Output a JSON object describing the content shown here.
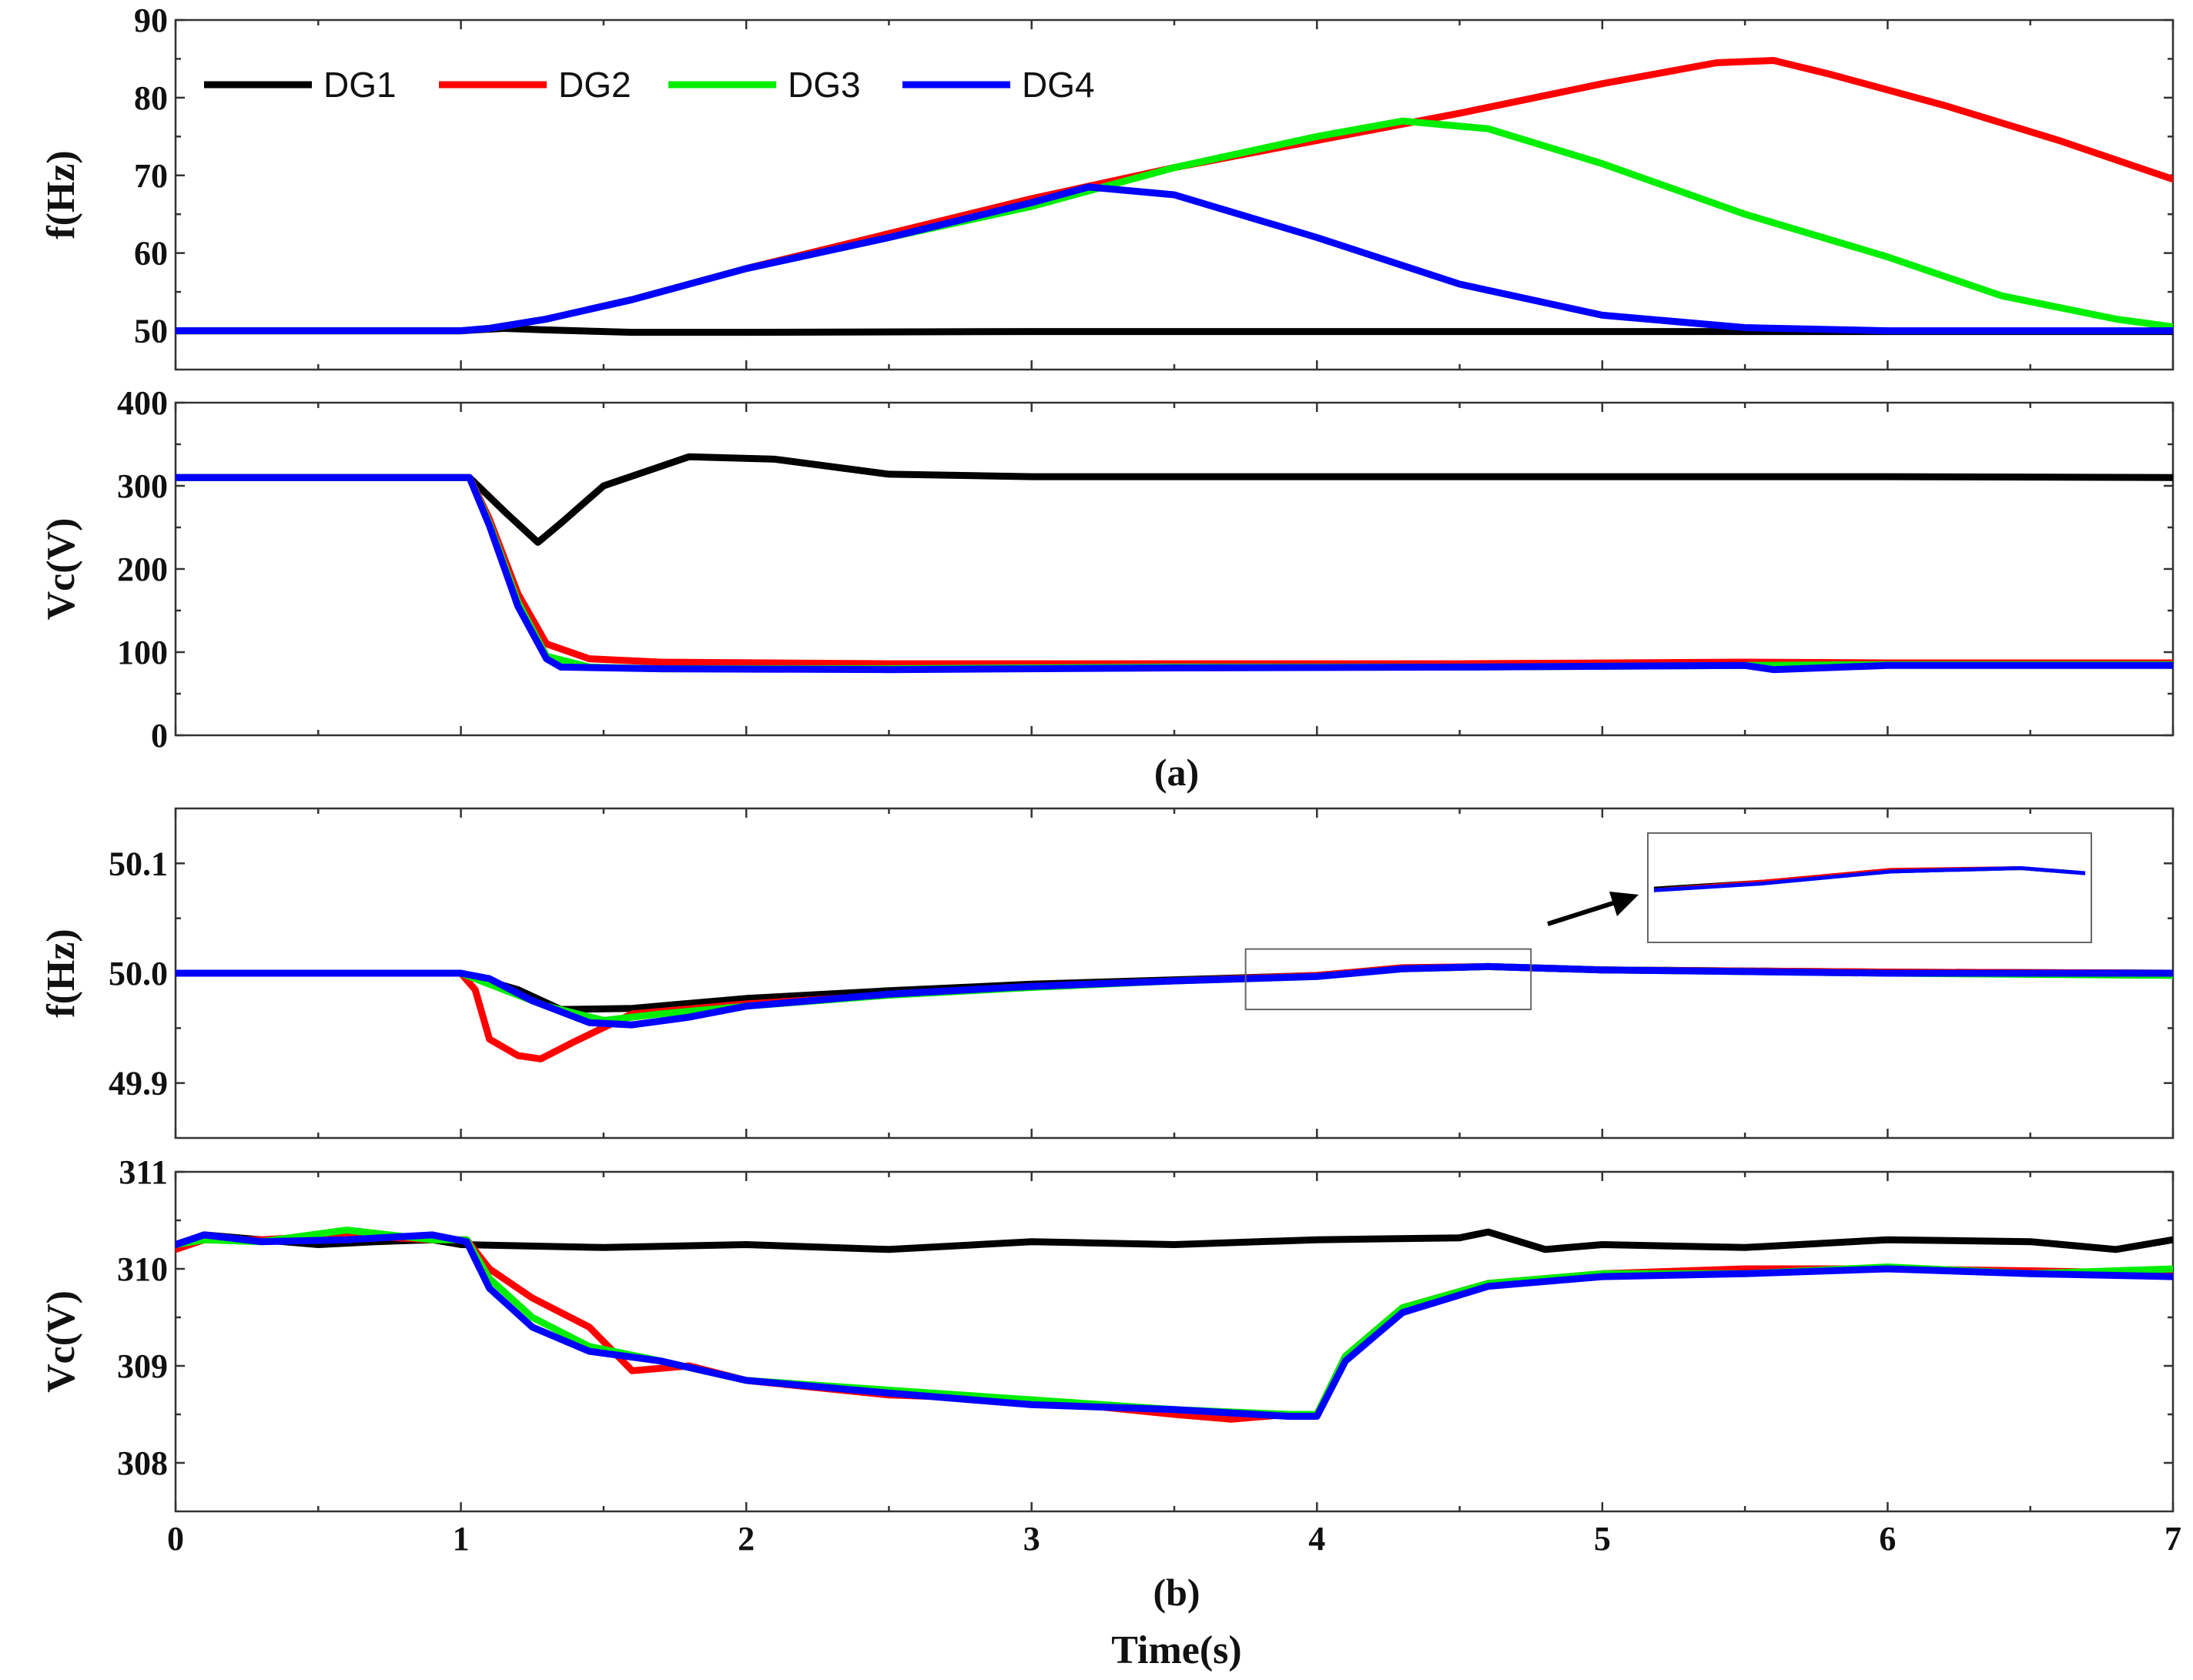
{
  "chart_data": [
    {
      "id": "a-f",
      "type": "line",
      "xlabel": "",
      "ylabel": "f(Hz)",
      "xlim": [
        0,
        7
      ],
      "ylim": [
        45,
        90
      ],
      "yticks": [
        "50",
        "60",
        "70",
        "80",
        "90"
      ],
      "ytick_values": [
        50,
        60,
        70,
        80,
        90
      ],
      "legend": {
        "position": "top-left",
        "entries": [
          "DG1",
          "DG2",
          "DG3",
          "DG4"
        ]
      },
      "series": [
        {
          "name": "DG1",
          "color": "#000000",
          "x": [
            0,
            1,
            1.15,
            1.3,
            1.6,
            2,
            3,
            4,
            5,
            6,
            7
          ],
          "y": [
            50,
            50,
            50.3,
            50.1,
            49.8,
            49.8,
            49.9,
            49.9,
            49.9,
            49.9,
            49.9
          ]
        },
        {
          "name": "DG2",
          "color": "#ff0000",
          "x": [
            0,
            1,
            1.1,
            1.3,
            1.6,
            2,
            2.5,
            3,
            3.5,
            4,
            4.5,
            5,
            5.4,
            5.6,
            5.8,
            6.2,
            6.6,
            7
          ],
          "y": [
            50,
            50,
            50.3,
            51.5,
            54,
            58,
            62.5,
            67,
            71,
            74.5,
            78,
            81.8,
            84.5,
            84.8,
            83,
            79,
            74.5,
            69.5
          ]
        },
        {
          "name": "DG3",
          "color": "#00ee00",
          "x": [
            0,
            1,
            1.1,
            1.3,
            1.6,
            2,
            2.5,
            3,
            3.5,
            4,
            4.3,
            4.6,
            5,
            5.5,
            6,
            6.4,
            6.8,
            7
          ],
          "y": [
            50,
            50,
            50.3,
            51.5,
            54,
            58,
            62,
            66,
            71,
            75,
            77,
            76,
            71.5,
            65,
            59.5,
            54.5,
            51.5,
            50.5
          ]
        },
        {
          "name": "DG4",
          "color": "#0000ff",
          "x": [
            0,
            1,
            1.1,
            1.3,
            1.6,
            2,
            2.5,
            3,
            3.2,
            3.5,
            4,
            4.5,
            5,
            5.5,
            6,
            7
          ],
          "y": [
            50,
            50,
            50.3,
            51.5,
            54,
            58,
            62,
            66.5,
            68.5,
            67.5,
            62,
            56,
            52,
            50.4,
            50,
            50
          ]
        }
      ]
    },
    {
      "id": "a-vc",
      "type": "line",
      "xlabel": "",
      "ylabel": "Vc(V)",
      "xlim": [
        0,
        7
      ],
      "ylim": [
        0,
        400
      ],
      "yticks": [
        "0",
        "100",
        "200",
        "300",
        "400"
      ],
      "ytick_values": [
        0,
        100,
        200,
        300,
        400
      ],
      "series": [
        {
          "name": "DG1",
          "color": "#000000",
          "x": [
            0,
            1.03,
            1.15,
            1.27,
            1.35,
            1.5,
            1.8,
            2.1,
            2.5,
            3,
            4,
            5,
            6,
            7
          ],
          "y": [
            310,
            310,
            270,
            232,
            255,
            300,
            335,
            332,
            314,
            311,
            311,
            311,
            311,
            310
          ]
        },
        {
          "name": "DG2",
          "color": "#ff0000",
          "x": [
            0,
            1.03,
            1.1,
            1.2,
            1.3,
            1.45,
            1.7,
            2.5,
            3.5,
            4.5,
            5.5,
            6,
            7
          ],
          "y": [
            310,
            310,
            260,
            170,
            110,
            92,
            88,
            86,
            86,
            86,
            88,
            87,
            87
          ]
        },
        {
          "name": "DG3",
          "color": "#00ee00",
          "x": [
            0,
            1.03,
            1.1,
            1.2,
            1.3,
            1.45,
            1.7,
            2.5,
            3.5,
            4.5,
            5.5,
            6,
            7
          ],
          "y": [
            310,
            310,
            255,
            160,
            95,
            82,
            80,
            80,
            82,
            82,
            84,
            85,
            85
          ]
        },
        {
          "name": "DG4",
          "color": "#0000ff",
          "x": [
            0,
            1.03,
            1.1,
            1.2,
            1.3,
            1.35,
            1.7,
            2.5,
            3.5,
            4.5,
            5.5,
            5.6,
            6,
            7
          ],
          "y": [
            310,
            310,
            252,
            155,
            92,
            82,
            80,
            79,
            81,
            82,
            84,
            79,
            84,
            84
          ]
        }
      ]
    },
    {
      "id": "b-f",
      "type": "line",
      "xlabel": "",
      "ylabel": "f(Hz)",
      "xlim": [
        0,
        7
      ],
      "ylim": [
        49.85,
        50.15
      ],
      "yticks": [
        "49.9",
        "50.0",
        "50.1"
      ],
      "ytick_values": [
        49.9,
        50.0,
        50.1
      ],
      "series": [
        {
          "name": "DG1",
          "color": "#000000",
          "x": [
            0,
            1,
            1.2,
            1.35,
            1.6,
            2,
            2.5,
            3,
            3.5,
            4,
            4.3,
            4.6,
            5,
            6,
            7
          ],
          "y": [
            50,
            50,
            49.985,
            49.967,
            49.968,
            49.977,
            49.984,
            49.99,
            49.994,
            49.998,
            50.004,
            50.006,
            50.003,
            50.001,
            50
          ]
        },
        {
          "name": "DG2",
          "color": "#ff0000",
          "x": [
            0,
            1,
            1.05,
            1.1,
            1.2,
            1.28,
            1.4,
            1.6,
            2,
            2.5,
            3,
            3.5,
            4,
            4.3,
            4.6,
            5,
            6,
            7
          ],
          "y": [
            50,
            50,
            49.985,
            49.94,
            49.925,
            49.922,
            49.938,
            49.963,
            49.972,
            49.98,
            49.988,
            49.993,
            49.998,
            50.005,
            50.006,
            50.003,
            50.001,
            50
          ]
        },
        {
          "name": "DG3",
          "color": "#00ee00",
          "x": [
            0,
            1,
            1.1,
            1.3,
            1.5,
            1.7,
            2,
            2.5,
            3,
            3.5,
            4,
            4.3,
            4.6,
            5,
            6,
            7
          ],
          "y": [
            50,
            50,
            49.99,
            49.97,
            49.957,
            49.963,
            49.97,
            49.98,
            49.987,
            49.993,
            49.997,
            50.004,
            50.006,
            50.003,
            50,
            49.998
          ]
        },
        {
          "name": "DG4",
          "color": "#0000ff",
          "x": [
            0,
            1,
            1.1,
            1.25,
            1.45,
            1.6,
            1.8,
            2,
            2.5,
            3,
            3.5,
            4,
            4.3,
            4.6,
            5,
            6,
            7
          ],
          "y": [
            50,
            50,
            49.995,
            49.975,
            49.955,
            49.953,
            49.96,
            49.97,
            49.981,
            49.988,
            49.993,
            49.997,
            50.004,
            50.006,
            50.003,
            50,
            50
          ]
        }
      ],
      "inset": {
        "x_range": [
          3.75,
          4.75
        ],
        "y_range": [
          49.967,
          50.022
        ]
      }
    },
    {
      "id": "b-vc",
      "type": "line",
      "xlabel": "Time(s)",
      "ylabel": "Vc(V)",
      "xlim": [
        0,
        7
      ],
      "ylim": [
        307.5,
        311
      ],
      "xticks": [
        "0",
        "1",
        "2",
        "3",
        "4",
        "5",
        "6",
        "7"
      ],
      "xtick_values": [
        0,
        1,
        2,
        3,
        4,
        5,
        6,
        7
      ],
      "yticks": [
        "308",
        "309",
        "310",
        "311"
      ],
      "ytick_values": [
        308,
        309,
        310,
        311
      ],
      "series": [
        {
          "name": "DG1",
          "color": "#000000",
          "x": [
            0,
            0.1,
            0.3,
            0.5,
            0.7,
            0.9,
            1,
            1.5,
            2,
            2.5,
            3,
            3.5,
            4,
            4.5,
            4.6,
            4.8,
            5,
            5.5,
            6,
            6.5,
            6.8,
            7
          ],
          "y": [
            310.25,
            310.35,
            310.3,
            310.25,
            310.28,
            310.3,
            310.25,
            310.22,
            310.25,
            310.2,
            310.28,
            310.25,
            310.3,
            310.32,
            310.38,
            310.2,
            310.25,
            310.22,
            310.3,
            310.28,
            310.2,
            310.3
          ]
        },
        {
          "name": "DG2",
          "color": "#ff0000",
          "x": [
            0,
            0.1,
            0.3,
            0.6,
            0.9,
            1.02,
            1.1,
            1.25,
            1.45,
            1.6,
            1.8,
            2,
            2.5,
            3,
            3.5,
            3.7,
            3.9,
            4,
            4.1,
            4.3,
            4.6,
            5,
            5.5,
            6,
            6.5,
            7
          ],
          "y": [
            310.2,
            310.3,
            310.3,
            310.35,
            310.3,
            310.3,
            310.0,
            309.7,
            309.4,
            308.95,
            309.0,
            308.85,
            308.7,
            308.65,
            308.5,
            308.45,
            308.5,
            308.5,
            309.1,
            309.6,
            309.85,
            309.95,
            310.0,
            310.0,
            309.98,
            309.95
          ]
        },
        {
          "name": "DG3",
          "color": "#00ee00",
          "x": [
            0,
            0.1,
            0.3,
            0.6,
            0.9,
            1.02,
            1.1,
            1.25,
            1.45,
            1.7,
            2,
            2.5,
            3,
            3.5,
            3.9,
            4,
            4.1,
            4.3,
            4.6,
            5,
            5.5,
            6,
            6.5,
            7
          ],
          "y": [
            310.25,
            310.3,
            310.28,
            310.4,
            310.3,
            310.3,
            309.9,
            309.5,
            309.2,
            309.05,
            308.85,
            308.75,
            308.65,
            308.55,
            308.5,
            308.5,
            309.1,
            309.6,
            309.85,
            309.95,
            309.95,
            310.02,
            309.95,
            310.0
          ]
        },
        {
          "name": "DG4",
          "color": "#0000ff",
          "x": [
            0,
            0.1,
            0.3,
            0.6,
            0.9,
            1.02,
            1.1,
            1.25,
            1.45,
            1.7,
            2,
            2.5,
            3,
            3.5,
            3.9,
            4,
            4.1,
            4.3,
            4.6,
            5,
            5.5,
            6,
            6.5,
            7
          ],
          "y": [
            310.25,
            310.35,
            310.28,
            310.3,
            310.35,
            310.28,
            309.8,
            309.4,
            309.15,
            309.05,
            308.85,
            308.72,
            308.6,
            308.55,
            308.48,
            308.48,
            309.05,
            309.55,
            309.82,
            309.92,
            309.95,
            310.0,
            309.95,
            309.92
          ]
        }
      ]
    }
  ],
  "captions": {
    "a": "(a)",
    "b": "(b)"
  }
}
